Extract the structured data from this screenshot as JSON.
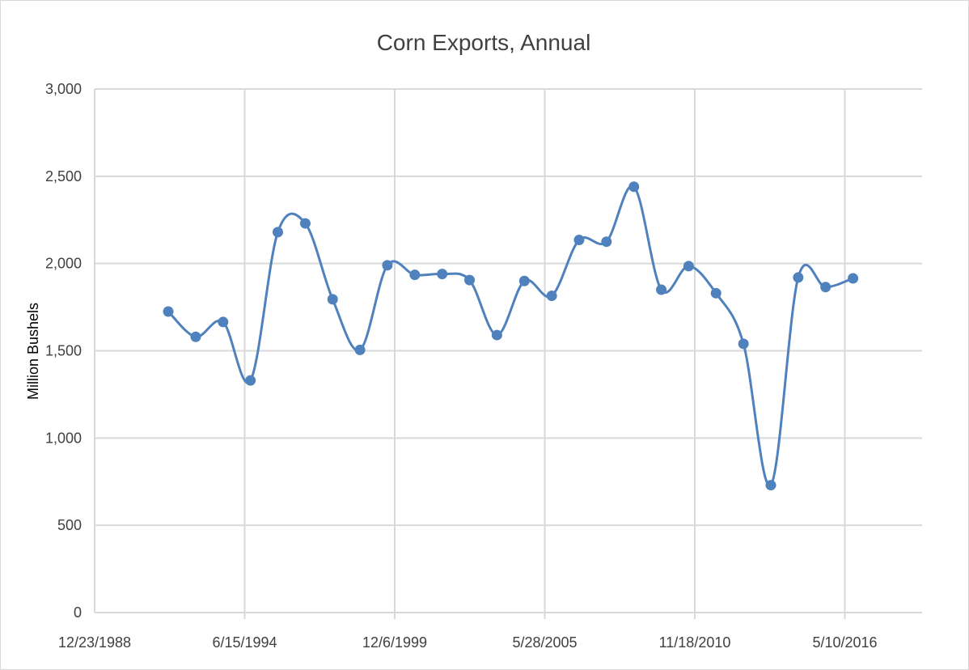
{
  "chart_data": {
    "type": "line",
    "title": "Corn Exports, Annual",
    "xlabel": "",
    "ylabel": "Million Bushels",
    "x_ticks": [
      "12/23/1988",
      "6/15/1994",
      "12/6/1999",
      "5/28/2005",
      "11/18/2010",
      "5/10/2016"
    ],
    "y_ticks": [
      "0",
      "500",
      "1,000",
      "1,500",
      "2,000",
      "2,500",
      "3,000"
    ],
    "ylim": [
      0,
      3000
    ],
    "grid": true,
    "smooth": true,
    "series": [
      {
        "color": "#4f81bd",
        "x": [
          "1991-09-01",
          "1992-09-01",
          "1993-09-01",
          "1994-09-01",
          "1995-09-01",
          "1996-09-01",
          "1997-09-01",
          "1998-09-01",
          "1999-09-01",
          "2000-09-01",
          "2001-09-01",
          "2002-09-01",
          "2003-09-01",
          "2004-09-01",
          "2005-09-01",
          "2006-09-01",
          "2007-09-01",
          "2008-09-01",
          "2009-09-01",
          "2010-09-01",
          "2011-09-01",
          "2012-09-01",
          "2013-09-01",
          "2014-09-01",
          "2015-09-01",
          "2016-09-01"
        ],
        "values": [
          1725,
          1580,
          1665,
          1330,
          2180,
          2230,
          1795,
          1505,
          1990,
          1935,
          1940,
          1905,
          1590,
          1900,
          1815,
          2135,
          2125,
          2440,
          1850,
          1985,
          1830,
          1540,
          730,
          1920,
          1865,
          1915
        ]
      }
    ]
  }
}
